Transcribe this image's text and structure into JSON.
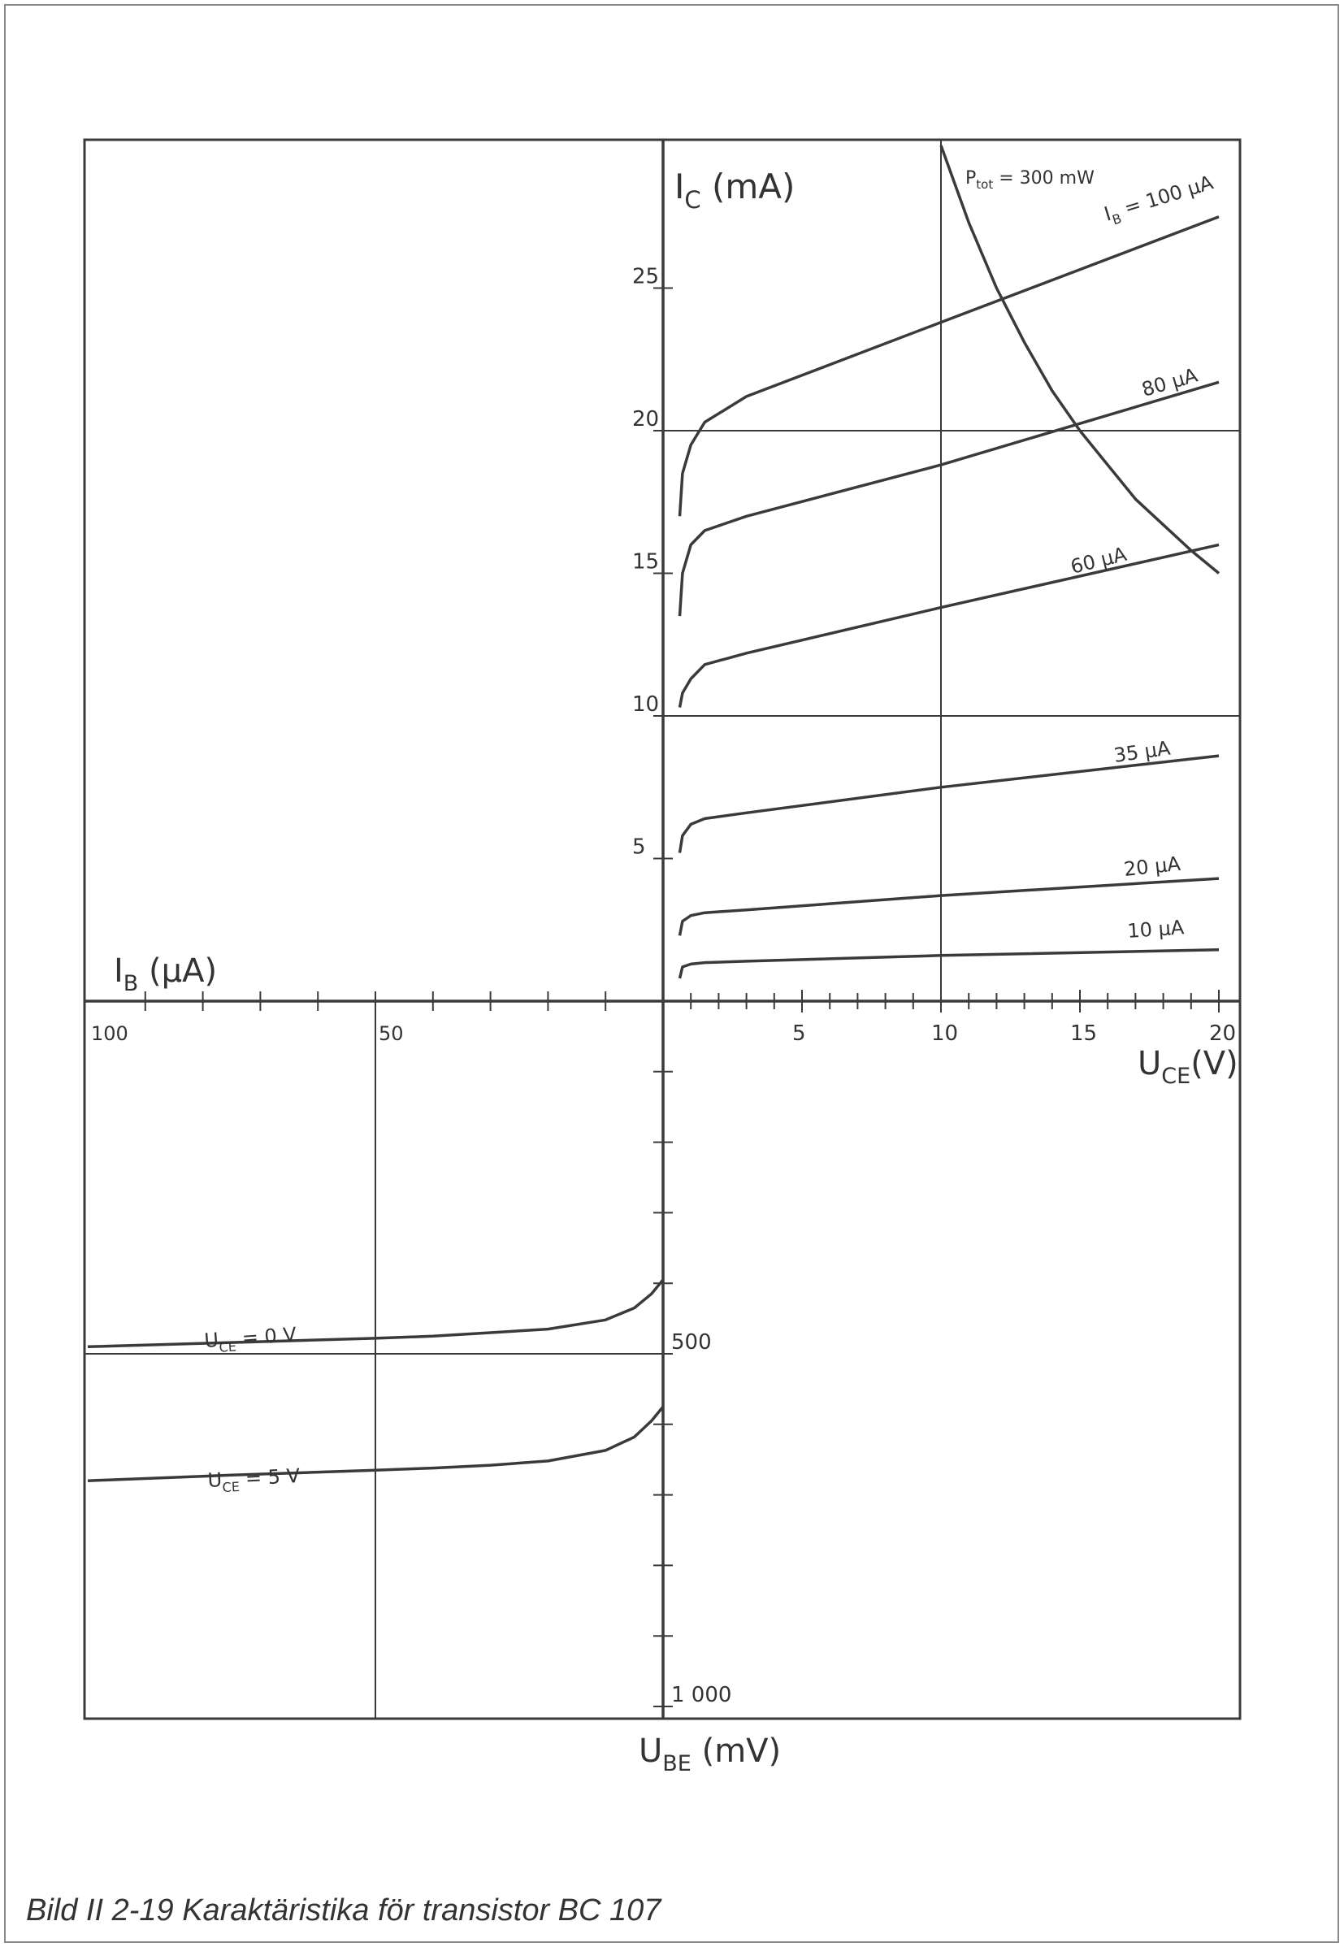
{
  "chart_data": {
    "type": "line",
    "title": "",
    "quadrants": {
      "output": {
        "xlabel": "U_CE(V)",
        "ylabel": "I_C (mA)",
        "xlim": [
          0,
          20
        ],
        "ylim": [
          0,
          30
        ],
        "x_ticks": [
          "5",
          "10",
          "15",
          "20"
        ],
        "y_ticks": [
          "5",
          "10",
          "15",
          "20",
          "25"
        ],
        "series": [
          {
            "name": "I_B = 100 µA",
            "x": [
              0.6,
              0.7,
              1,
              1.5,
              3,
              10,
              20
            ],
            "y": [
              17,
              18.5,
              19.5,
              20.3,
              21.2,
              23.8,
              27.5
            ]
          },
          {
            "name": "80 µA",
            "x": [
              0.6,
              0.7,
              1,
              1.5,
              3,
              10,
              20
            ],
            "y": [
              13.5,
              15,
              16,
              16.5,
              17,
              18.8,
              21.7
            ]
          },
          {
            "name": "60 µA",
            "x": [
              0.6,
              0.7,
              1,
              1.5,
              3,
              10,
              20
            ],
            "y": [
              10.3,
              10.8,
              11.3,
              11.8,
              12.2,
              13.8,
              16
            ]
          },
          {
            "name": "35 µA",
            "x": [
              0.6,
              0.7,
              1,
              1.5,
              3,
              10,
              20
            ],
            "y": [
              5.2,
              5.8,
              6.2,
              6.4,
              6.6,
              7.5,
              8.6
            ]
          },
          {
            "name": "20 µA",
            "x": [
              0.6,
              0.7,
              1,
              1.5,
              3,
              10,
              20
            ],
            "y": [
              2.3,
              2.8,
              3.0,
              3.1,
              3.2,
              3.7,
              4.3
            ]
          },
          {
            "name": "10 µA",
            "x": [
              0.6,
              0.7,
              1,
              1.5,
              3,
              10,
              20
            ],
            "y": [
              0.8,
              1.2,
              1.3,
              1.35,
              1.4,
              1.6,
              1.8
            ]
          },
          {
            "name": "P_tot = 300 mW",
            "x": [
              10,
              11,
              12,
              13,
              14,
              15,
              16,
              17,
              18,
              19,
              20
            ],
            "y": [
              30,
              27.3,
              25,
              23.1,
              21.4,
              20,
              18.8,
              17.6,
              16.7,
              15.8,
              15
            ]
          }
        ]
      },
      "input": {
        "xlabel": "I_B (µA)",
        "ylabel": "U_BE (mV)",
        "xlim": [
          0,
          100
        ],
        "ylim": [
          0,
          1000
        ],
        "x_ticks": [
          "100",
          "50"
        ],
        "y_ticks": [
          "500",
          "1 000"
        ],
        "series": [
          {
            "name": "U_CE = 0 V",
            "x": [
              0,
              2,
              5,
              10,
              20,
              30,
              40,
              50,
              75,
              100
            ],
            "y": [
              395,
              415,
              435,
              452,
              465,
              470,
              475,
              478,
              484,
              490
            ]
          },
          {
            "name": "U_CE = 5 V",
            "x": [
              0,
              2,
              5,
              10,
              20,
              30,
              40,
              50,
              75,
              100
            ],
            "y": [
              575,
              595,
              618,
              637,
              652,
              658,
              662,
              665,
              672,
              680
            ]
          }
        ]
      }
    },
    "series_labels": {
      "ib100": "I_B = 100 µA",
      "ib80": "80 µA",
      "ib60": "60 µA",
      "ib35": "35 µA",
      "ib20": "20 µA",
      "ib10": "10 µA",
      "ptot": "P_tot = 300 mW",
      "uce0": "U_CE = 0 V",
      "uce5": "U_CE = 5 V"
    },
    "grid": true
  },
  "caption": "Bild II 2-19  Karaktäristika för transistor BC 107",
  "colors": {
    "line": "#3a3a3a",
    "frame": "#8a8a8a"
  }
}
